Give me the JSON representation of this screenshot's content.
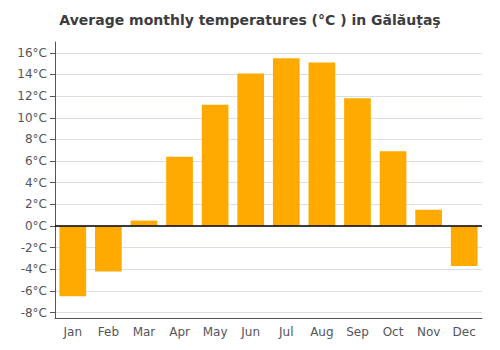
{
  "chart_data": {
    "type": "bar",
    "title": "Average monthly temperatures (°C ) in Gălăuțaş",
    "categories": [
      "Jan",
      "Feb",
      "Mar",
      "Apr",
      "May",
      "Jun",
      "Jul",
      "Aug",
      "Sep",
      "Oct",
      "Nov",
      "Dec"
    ],
    "values": [
      -6.5,
      -4.2,
      0.5,
      6.4,
      11.2,
      14.1,
      15.5,
      15.1,
      11.8,
      6.9,
      1.5,
      -3.7
    ],
    "color": "#FFAA00",
    "ylim": [
      -8.5,
      17
    ],
    "yticks": [
      {
        "value": -8,
        "label": "-8°C"
      },
      {
        "value": -6,
        "label": "-6°C"
      },
      {
        "value": -4,
        "label": "-4°C"
      },
      {
        "value": -2,
        "label": "-2°C"
      },
      {
        "value": 0,
        "label": "0°C"
      },
      {
        "value": 2,
        "label": "2°C"
      },
      {
        "value": 4,
        "label": "4°C"
      },
      {
        "value": 6,
        "label": "6°C"
      },
      {
        "value": 8,
        "label": "8°C"
      },
      {
        "value": 10,
        "label": "10°C"
      },
      {
        "value": 12,
        "label": "12°C"
      },
      {
        "value": 14,
        "label": "14°C"
      },
      {
        "value": 16,
        "label": "16°C"
      }
    ],
    "grid": true
  }
}
